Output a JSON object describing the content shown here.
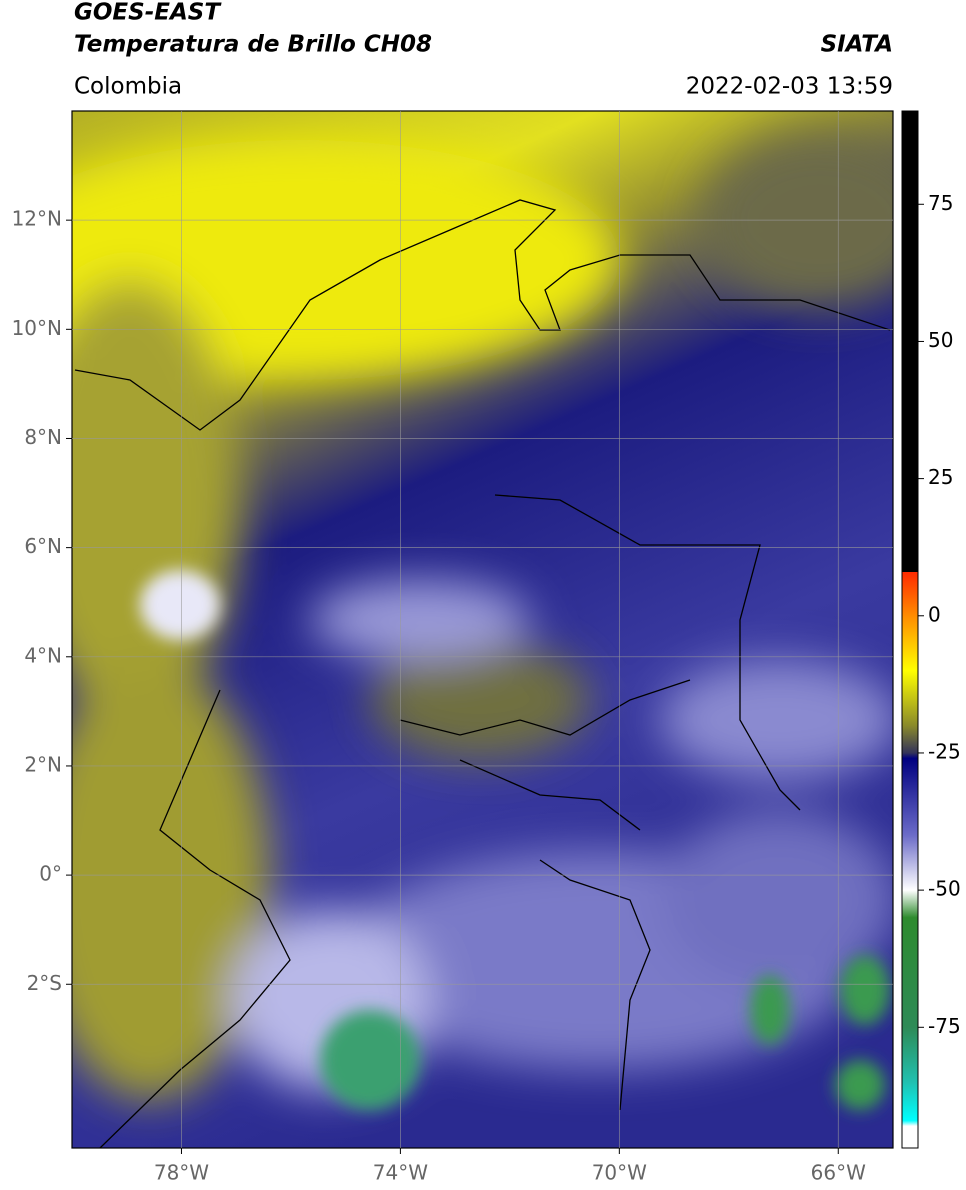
{
  "chart_data": {
    "type": "map",
    "title": "GOES-EAST",
    "subtitle": "Temperatura de Brillo CH08",
    "source": "SIATA",
    "region": "Colombia",
    "timestamp": "2022-02-03 13:59",
    "xlim": [
      -80,
      -65
    ],
    "ylim": [
      -5,
      14
    ],
    "xticks": [
      {
        "value": -78,
        "label": "78°W"
      },
      {
        "value": -74,
        "label": "74°W"
      },
      {
        "value": -70,
        "label": "70°W"
      },
      {
        "value": -66,
        "label": "66°W"
      }
    ],
    "yticks": [
      {
        "value": 12,
        "label": "12°N"
      },
      {
        "value": 10,
        "label": "10°N"
      },
      {
        "value": 8,
        "label": "8°N"
      },
      {
        "value": 6,
        "label": "6°N"
      },
      {
        "value": 4,
        "label": "4°N"
      },
      {
        "value": 2,
        "label": "2°N"
      },
      {
        "value": 0,
        "label": "0°"
      },
      {
        "value": -2,
        "label": "2°S"
      }
    ],
    "grid": true,
    "colorbar": {
      "lim": [
        -97,
        92
      ],
      "ticks": [
        75,
        50,
        25,
        0,
        -25,
        -50,
        -75
      ],
      "stops": [
        {
          "value": 92,
          "color": "#000000"
        },
        {
          "value": 8,
          "color": "#000000"
        },
        {
          "value": 8,
          "color": "#ff2a00"
        },
        {
          "value": 0,
          "color": "#ff8c00"
        },
        {
          "value": -10,
          "color": "#ffff00"
        },
        {
          "value": -20,
          "color": "#8a8a2a"
        },
        {
          "value": -25,
          "color": "#33335a"
        },
        {
          "value": -26,
          "color": "#000080"
        },
        {
          "value": -40,
          "color": "#6b6bc8"
        },
        {
          "value": -50,
          "color": "#ffffff"
        },
        {
          "value": -55,
          "color": "#2e8b2e"
        },
        {
          "value": -75,
          "color": "#2e8b57"
        },
        {
          "value": -85,
          "color": "#20c0b0"
        },
        {
          "value": -92,
          "color": "#00ffff"
        },
        {
          "value": -93,
          "color": "#ffffff"
        },
        {
          "value": -97,
          "color": "#ffffff"
        }
      ]
    }
  }
}
